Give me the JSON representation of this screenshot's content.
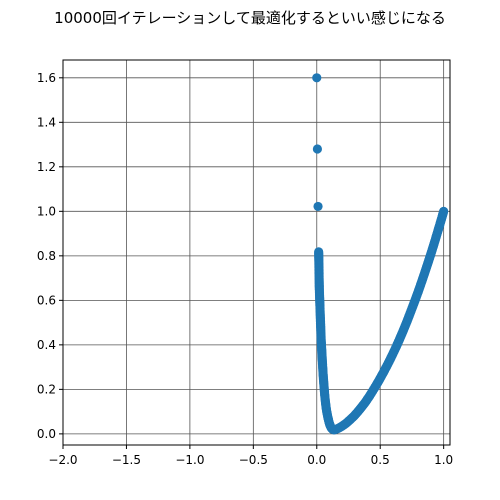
{
  "chart_data": {
    "type": "scatter",
    "title": "10000回イテレーションして最適化するといい感じになる",
    "xlabel": "",
    "ylabel": "",
    "xlim": [
      -2.0,
      1.05
    ],
    "ylim": [
      -0.05,
      1.68
    ],
    "xticks": [
      -2.0,
      -1.5,
      -1.0,
      -0.5,
      0.0,
      0.5,
      1.0
    ],
    "xtick_labels": [
      "−2.0",
      "−1.5",
      "−1.0",
      "−0.5",
      "0.0",
      "0.5",
      "1.0"
    ],
    "yticks": [
      0.0,
      0.2,
      0.4,
      0.6,
      0.8,
      1.0,
      1.2,
      1.4,
      1.6
    ],
    "ytick_labels": [
      "0.0",
      "0.2",
      "0.4",
      "0.6",
      "0.8",
      "1.0",
      "1.2",
      "1.4",
      "1.6"
    ],
    "grid": true,
    "marker_color": "#1f77b4",
    "grid_color": "#555555",
    "series": [
      {
        "points": [
          [
            0.0,
            1.6
          ],
          [
            0.005,
            1.28
          ],
          [
            0.01,
            1.022
          ],
          [
            0.015,
            0.818
          ],
          [
            0.02,
            0.655
          ],
          [
            0.028,
            0.524
          ],
          [
            0.035,
            0.418
          ],
          [
            0.043,
            0.336
          ],
          [
            0.05,
            0.268
          ],
          [
            0.057,
            0.214
          ],
          [
            0.063,
            0.172
          ],
          [
            0.069,
            0.14
          ],
          [
            0.075,
            0.113
          ],
          [
            0.081,
            0.093
          ],
          [
            0.087,
            0.076
          ],
          [
            0.093,
            0.061
          ],
          [
            0.098,
            0.05
          ],
          [
            0.103,
            0.041
          ],
          [
            0.108,
            0.034
          ],
          [
            0.113,
            0.028
          ],
          [
            0.118,
            0.024
          ],
          [
            0.125,
            0.02
          ],
          [
            0.135,
            0.018
          ],
          [
            0.15,
            0.02
          ],
          [
            0.17,
            0.025
          ],
          [
            0.2,
            0.035
          ],
          [
            0.23,
            0.047
          ],
          [
            0.26,
            0.062
          ],
          [
            0.29,
            0.078
          ],
          [
            0.32,
            0.097
          ],
          [
            0.35,
            0.118
          ],
          [
            0.38,
            0.14
          ],
          [
            0.41,
            0.165
          ],
          [
            0.44,
            0.192
          ],
          [
            0.47,
            0.22
          ],
          [
            0.5,
            0.25
          ],
          [
            0.53,
            0.281
          ],
          [
            0.56,
            0.314
          ],
          [
            0.59,
            0.348
          ],
          [
            0.62,
            0.384
          ],
          [
            0.65,
            0.422
          ],
          [
            0.68,
            0.462
          ],
          [
            0.71,
            0.504
          ],
          [
            0.74,
            0.548
          ],
          [
            0.77,
            0.593
          ],
          [
            0.8,
            0.64
          ],
          [
            0.83,
            0.689
          ],
          [
            0.86,
            0.74
          ],
          [
            0.89,
            0.792
          ],
          [
            0.92,
            0.846
          ],
          [
            0.95,
            0.903
          ],
          [
            0.97,
            0.941
          ],
          [
            0.985,
            0.97
          ],
          [
            0.995,
            0.99
          ],
          [
            1.0,
            1.0
          ]
        ]
      }
    ]
  }
}
